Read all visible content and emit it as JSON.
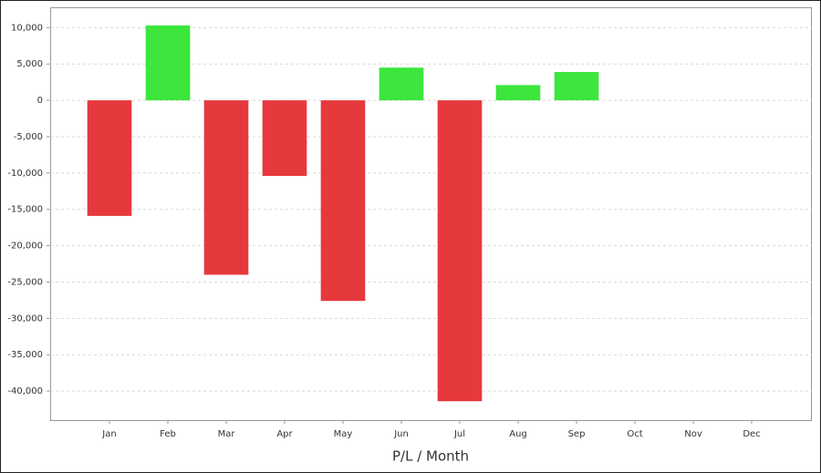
{
  "chart_data": {
    "type": "bar",
    "x_label": "P/L / Month",
    "categories": [
      "Jan",
      "Feb",
      "Mar",
      "Apr",
      "May",
      "Jun",
      "Jul",
      "Aug",
      "Sep",
      "Oct",
      "Nov",
      "Dec"
    ],
    "values": [
      -15900,
      10300,
      -24000,
      -10400,
      -27600,
      4500,
      -41400,
      2100,
      3900,
      null,
      null,
      null
    ],
    "positive_color": "#3ce63c",
    "negative_color": "#e6393e",
    "ylim": [
      -44000,
      12800
    ],
    "yticks": [
      {
        "value": -40000,
        "label": "-40,000"
      },
      {
        "value": -35000,
        "label": "-35,000"
      },
      {
        "value": -30000,
        "label": "-30,000"
      },
      {
        "value": -25000,
        "label": "-25,000"
      },
      {
        "value": -20000,
        "label": "-20,000"
      },
      {
        "value": -15000,
        "label": "-15,000"
      },
      {
        "value": -10000,
        "label": "-10,000"
      },
      {
        "value": -5000,
        "label": "-5,000"
      },
      0,
      {
        "value": 5000,
        "label": "5,000"
      },
      {
        "value": 10000,
        "label": "10,000"
      }
    ],
    "grid": true
  }
}
